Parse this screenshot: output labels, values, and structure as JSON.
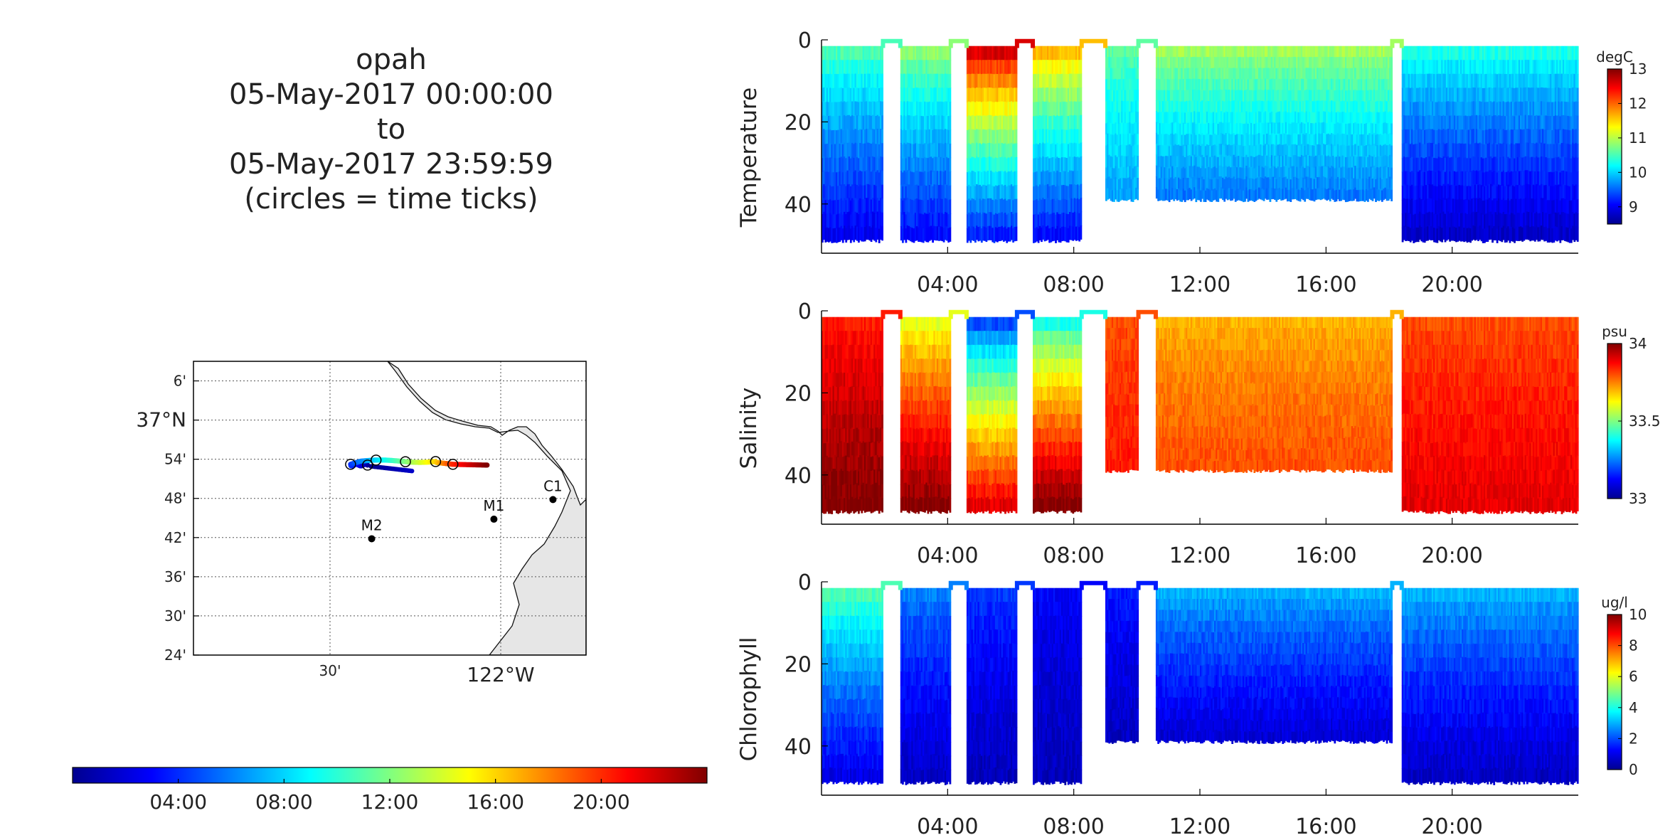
{
  "title": {
    "lines": [
      "opah",
      "05-May-2017 00:00:00",
      "to",
      "05-May-2017 23:59:59",
      "(circles = time ticks)"
    ]
  },
  "colormap": [
    "#00008f",
    "#0000ff",
    "#0080ff",
    "#00ffff",
    "#80ff80",
    "#ffff00",
    "#ff8000",
    "#ff0000",
    "#800000"
  ],
  "time_colorbar": {
    "ticks": [
      {
        "hour": 4,
        "label": "04:00"
      },
      {
        "hour": 8,
        "label": "08:00"
      },
      {
        "hour": 12,
        "label": "12:00"
      },
      {
        "hour": 16,
        "label": "16:00"
      },
      {
        "hour": 20,
        "label": "20:00"
      }
    ],
    "range_hours": [
      0,
      24
    ]
  },
  "map": {
    "lat_ticks": [
      "6'",
      "37°N",
      "54'",
      "48'",
      "42'",
      "36'",
      "30'",
      "24'"
    ],
    "lat_values": [
      37.1,
      37.0,
      36.9,
      36.8,
      36.7,
      36.6,
      36.5,
      36.4
    ],
    "lon_ticks": [
      {
        "lon": -122.5,
        "label": "30'"
      },
      {
        "lon": -122.0,
        "label": "122°W"
      }
    ],
    "lon_range": [
      -122.9,
      -121.75
    ],
    "lat_range": [
      36.4,
      37.15
    ],
    "moorings": [
      {
        "label": "C1",
        "lon": -121.847,
        "lat": 36.797
      },
      {
        "label": "M1",
        "lon": -122.02,
        "lat": 36.747
      },
      {
        "label": "M2",
        "lon": -122.378,
        "lat": 36.697
      }
    ],
    "land_color": "#e6e6e6"
  },
  "chart_data": [
    {
      "type": "scatter",
      "title": "",
      "ylabel": "Temperature",
      "units": "degC",
      "ylim": [
        0,
        52
      ],
      "yticks": [
        0,
        20,
        40
      ],
      "xlim_hours": [
        0,
        24
      ],
      "xticks": [
        "04:00",
        "08:00",
        "12:00",
        "16:00",
        "20:00"
      ],
      "clim": [
        8.5,
        13
      ],
      "cticks": [
        9,
        10,
        11,
        12,
        13
      ],
      "segments": [
        {
          "start": 0.0,
          "end": 1.95,
          "max_depth": 50,
          "surface": 10.5,
          "bottom": 9.0
        },
        {
          "start": 2.5,
          "end": 4.1,
          "max_depth": 50,
          "surface": 10.8,
          "bottom": 9.1
        },
        {
          "start": 4.6,
          "end": 6.2,
          "max_depth": 50,
          "surface": 12.6,
          "bottom": 9.2
        },
        {
          "start": 6.7,
          "end": 8.25,
          "max_depth": 50,
          "surface": 11.6,
          "bottom": 9.1
        },
        {
          "start": 9.0,
          "end": 10.05,
          "max_depth": 40,
          "surface": 10.6,
          "bottom": 9.8
        },
        {
          "start": 10.6,
          "end": 18.1,
          "max_depth": 40,
          "surface": 10.9,
          "bottom": 9.6
        },
        {
          "start": 18.4,
          "end": 24.0,
          "max_depth": 50,
          "surface": 10.3,
          "bottom": 8.8
        }
      ]
    },
    {
      "type": "scatter",
      "title": "",
      "ylabel": "Salinity",
      "units": "psu",
      "ylim": [
        0,
        52
      ],
      "yticks": [
        0,
        20,
        40
      ],
      "xlim_hours": [
        0,
        24
      ],
      "xticks": [
        "04:00",
        "08:00",
        "12:00",
        "16:00",
        "20:00"
      ],
      "clim": [
        33,
        34
      ],
      "cticks": [
        33,
        33.5,
        34
      ],
      "segments": [
        {
          "start": 0.0,
          "end": 1.95,
          "max_depth": 50,
          "surface": 33.85,
          "bottom": 34.0
        },
        {
          "start": 2.5,
          "end": 4.1,
          "max_depth": 50,
          "surface": 33.6,
          "bottom": 34.0
        },
        {
          "start": 4.6,
          "end": 6.2,
          "max_depth": 50,
          "surface": 33.2,
          "bottom": 33.9
        },
        {
          "start": 6.7,
          "end": 8.25,
          "max_depth": 50,
          "surface": 33.4,
          "bottom": 34.0
        },
        {
          "start": 9.0,
          "end": 10.05,
          "max_depth": 40,
          "surface": 33.8,
          "bottom": 33.85
        },
        {
          "start": 10.6,
          "end": 18.1,
          "max_depth": 40,
          "surface": 33.7,
          "bottom": 33.8
        },
        {
          "start": 18.4,
          "end": 24.0,
          "max_depth": 50,
          "surface": 33.8,
          "bottom": 33.9
        }
      ]
    },
    {
      "type": "scatter",
      "title": "",
      "ylabel": "Chlorophyll",
      "units": "ug/l",
      "ylim": [
        0,
        52
      ],
      "yticks": [
        0,
        20,
        40
      ],
      "xlim_hours": [
        0,
        24
      ],
      "xticks": [
        "04:00",
        "08:00",
        "12:00",
        "16:00",
        "20:00"
      ],
      "clim": [
        0,
        10
      ],
      "cticks": [
        0,
        2,
        4,
        6,
        8,
        10
      ],
      "segments": [
        {
          "start": 0.0,
          "end": 1.95,
          "max_depth": 50,
          "surface": 4.5,
          "bottom": 1.0
        },
        {
          "start": 2.5,
          "end": 4.1,
          "max_depth": 50,
          "surface": 2.5,
          "bottom": 0.6
        },
        {
          "start": 4.6,
          "end": 6.2,
          "max_depth": 50,
          "surface": 1.8,
          "bottom": 0.5
        },
        {
          "start": 6.7,
          "end": 8.25,
          "max_depth": 50,
          "surface": 1.2,
          "bottom": 0.5
        },
        {
          "start": 9.0,
          "end": 10.05,
          "max_depth": 40,
          "surface": 1.5,
          "bottom": 0.6
        },
        {
          "start": 10.6,
          "end": 18.1,
          "max_depth": 40,
          "surface": 3.0,
          "bottom": 0.8
        },
        {
          "start": 18.4,
          "end": 24.0,
          "max_depth": 50,
          "surface": 3.0,
          "bottom": 0.6
        }
      ]
    }
  ]
}
